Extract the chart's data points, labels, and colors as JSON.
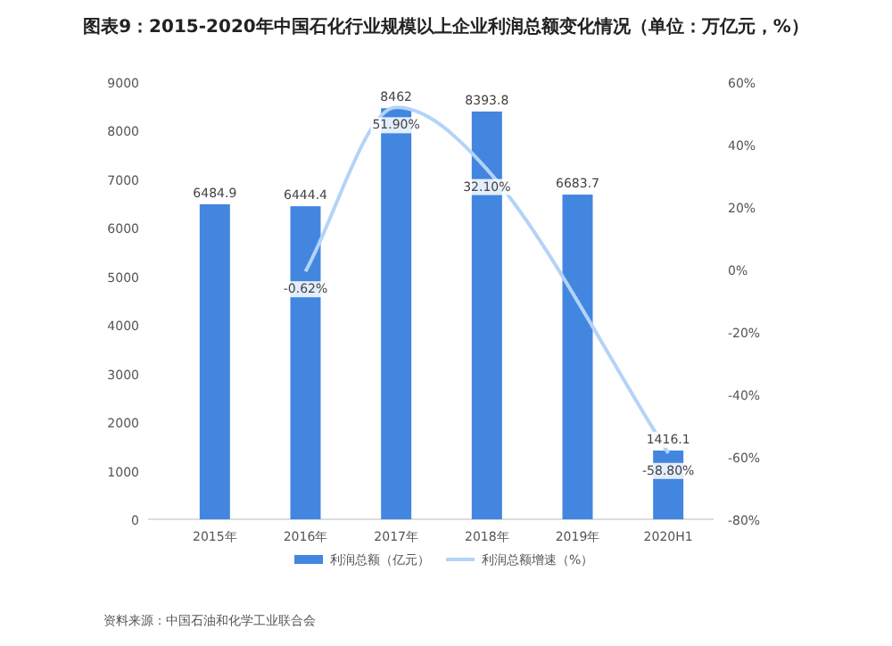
{
  "chart_data": {
    "type": "bar",
    "title": "图表9：2015-2020年中国石化行业规模以上企业利润总额变化情况（单位：万亿元，%）",
    "categories": [
      "2015年",
      "2016年",
      "2017年",
      "2018年",
      "2019年",
      "2020H1"
    ],
    "series": [
      {
        "name": "利润总额（亿元）",
        "color": "#4286e0",
        "values": [
          6484.9,
          6444.4,
          8462,
          8393.8,
          6683.7,
          1416.1
        ],
        "value_labels": [
          "6484.9",
          "6444.4",
          "8462",
          "8393.8",
          "6683.7",
          "1416.1"
        ]
      },
      {
        "name": "利润总额增速（%）",
        "type": "line",
        "axis": "y2",
        "color": "#b3d3f8",
        "values": [
          null,
          -0.62,
          51.9,
          32.1,
          null,
          -58.8
        ],
        "value_labels": [
          null,
          "-0.62%",
          "51.90%",
          "32.10%",
          null,
          "-58.80%"
        ]
      }
    ],
    "ylim": [
      0,
      9000
    ],
    "yticks": [
      0,
      1000,
      2000,
      3000,
      4000,
      5000,
      6000,
      7000,
      8000,
      9000
    ],
    "y2lim": [
      -80,
      60
    ],
    "y2ticks": [
      {
        "value": -80,
        "label": "-80%"
      },
      {
        "value": -60,
        "label": "-60%"
      },
      {
        "value": -40,
        "label": "-40%"
      },
      {
        "value": -20,
        "label": "-20%"
      },
      {
        "value": 0,
        "label": "0%"
      },
      {
        "value": 20,
        "label": "20%"
      },
      {
        "value": 40,
        "label": "40%"
      },
      {
        "value": 60,
        "label": "60%"
      }
    ],
    "legend": "bottom",
    "grid": false,
    "annotations": [
      "资料来源：中国石油和化学工业联合会"
    ]
  }
}
